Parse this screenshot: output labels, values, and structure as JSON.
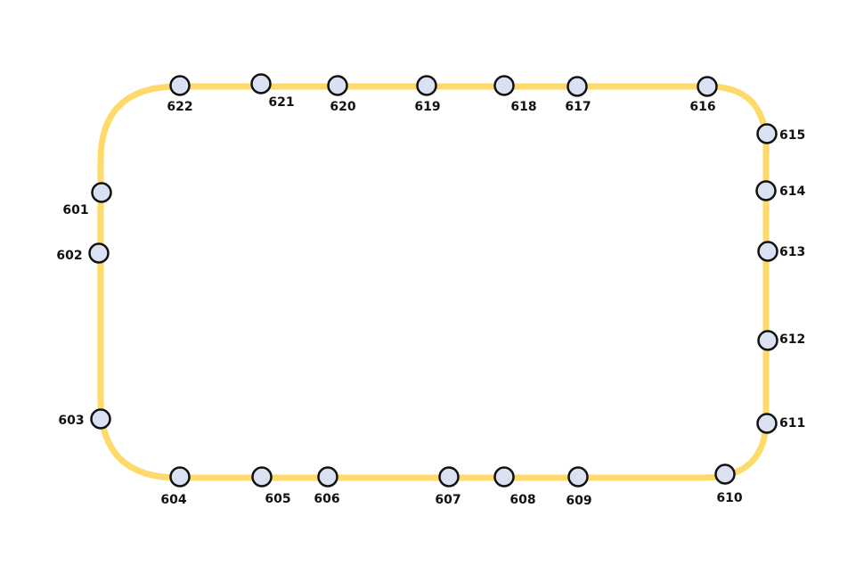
{
  "line": {
    "color": "#FDDA6A",
    "station_fill": "#D9E1F2",
    "station_stroke": "#111111"
  },
  "stations": [
    {
      "id": "601",
      "label": "601"
    },
    {
      "id": "602",
      "label": "602"
    },
    {
      "id": "603",
      "label": "603"
    },
    {
      "id": "604",
      "label": "604"
    },
    {
      "id": "605",
      "label": "605"
    },
    {
      "id": "606",
      "label": "606"
    },
    {
      "id": "607",
      "label": "607"
    },
    {
      "id": "608",
      "label": "608"
    },
    {
      "id": "609",
      "label": "609"
    },
    {
      "id": "610",
      "label": "610"
    },
    {
      "id": "611",
      "label": "611"
    },
    {
      "id": "612",
      "label": "612"
    },
    {
      "id": "613",
      "label": "613"
    },
    {
      "id": "614",
      "label": "614"
    },
    {
      "id": "615",
      "label": "615"
    },
    {
      "id": "616",
      "label": "616"
    },
    {
      "id": "617",
      "label": "617"
    },
    {
      "id": "618",
      "label": "618"
    },
    {
      "id": "619",
      "label": "619"
    },
    {
      "id": "620",
      "label": "620"
    },
    {
      "id": "621",
      "label": "621"
    },
    {
      "id": "622",
      "label": "622"
    }
  ]
}
